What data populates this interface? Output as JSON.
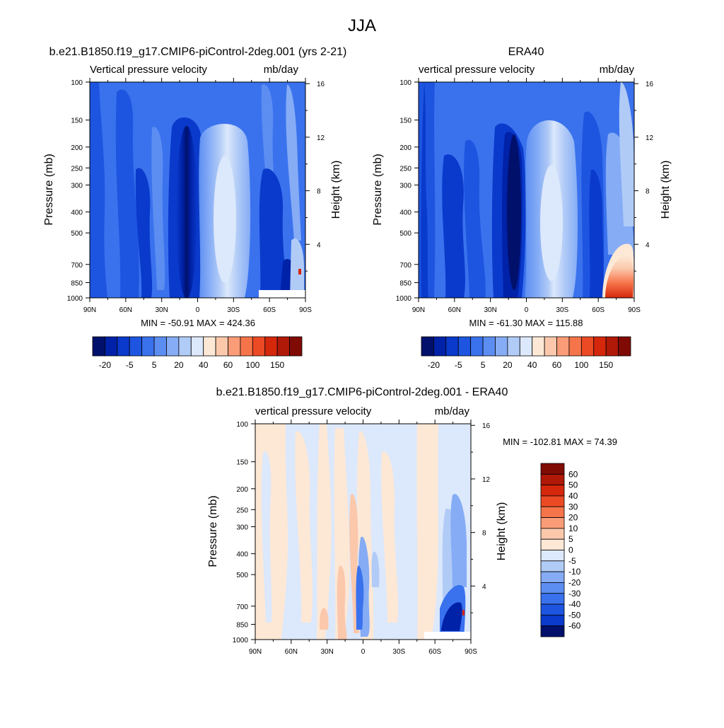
{
  "figure": {
    "title": "JJA"
  },
  "chart_data": [
    {
      "type": "heatmap",
      "title": "b.e21.B1850.f19_g17.CMIP6-piControl-2deg.001 (yrs 2-21)",
      "left_label": "Vertical pressure velocity",
      "right_label": "mb/day",
      "xlabel": "",
      "ylabel": "Pressure (mb)",
      "ylabel_right": "Height (km)",
      "x_ticks": [
        "90N",
        "60N",
        "30N",
        "0",
        "30S",
        "60S",
        "90S"
      ],
      "y_ticks": [
        "100",
        "150",
        "200",
        "250",
        "300",
        "400",
        "500",
        "700",
        "850",
        "1000"
      ],
      "height_ticks": [
        "16",
        "12",
        "8",
        "4"
      ],
      "x_range": [
        90,
        -90
      ],
      "y_range": [
        100,
        1000
      ],
      "stats": "MIN = -50.91  MAX = 424.36",
      "colorbar_labels": [
        "-20",
        "-5",
        "5",
        "20",
        "40",
        "60",
        "100",
        "150"
      ],
      "colors": [
        "#00106b",
        "#0022a8",
        "#0a3acc",
        "#1d55e0",
        "#3a72ee",
        "#5c8ef2",
        "#85acf5",
        "#b1cbf7",
        "#dce8fb",
        "#fde8d6",
        "#fbc8ac",
        "#fa9c77",
        "#f6744a",
        "#ec4a24",
        "#d5270c",
        "#b01808",
        "#800b05"
      ]
    },
    {
      "type": "heatmap",
      "title": "ERA40",
      "left_label": "vertical pressure velocity",
      "right_label": "mb/day",
      "xlabel": "",
      "ylabel": "Pressure (mb)",
      "ylabel_right": "Height (km)",
      "x_ticks": [
        "90N",
        "60N",
        "30N",
        "0",
        "30S",
        "60S",
        "90S"
      ],
      "y_ticks": [
        "100",
        "150",
        "200",
        "250",
        "300",
        "400",
        "500",
        "700",
        "850",
        "1000"
      ],
      "height_ticks": [
        "16",
        "12",
        "8",
        "4"
      ],
      "x_range": [
        90,
        -90
      ],
      "y_range": [
        100,
        1000
      ],
      "stats": "MIN = -61.30  MAX = 115.88",
      "colorbar_labels": [
        "-20",
        "-5",
        "5",
        "20",
        "40",
        "60",
        "100",
        "150"
      ],
      "colors": [
        "#00106b",
        "#0022a8",
        "#0a3acc",
        "#1d55e0",
        "#3a72ee",
        "#5c8ef2",
        "#85acf5",
        "#b1cbf7",
        "#dce8fb",
        "#fde8d6",
        "#fbc8ac",
        "#fa9c77",
        "#f6744a",
        "#ec4a24",
        "#d5270c",
        "#b01808",
        "#800b05"
      ]
    },
    {
      "type": "heatmap",
      "title": "b.e21.B1850.f19_g17.CMIP6-piControl-2deg.001 - ERA40",
      "left_label": "vertical pressure velocity",
      "right_label": "mb/day",
      "xlabel": "",
      "ylabel": "Pressure (mb)",
      "ylabel_right": "Height (km)",
      "x_ticks": [
        "90N",
        "60N",
        "30N",
        "0",
        "30S",
        "60S",
        "90S"
      ],
      "y_ticks": [
        "100",
        "150",
        "200",
        "250",
        "300",
        "400",
        "500",
        "700",
        "850",
        "1000"
      ],
      "height_ticks": [
        "16",
        "12",
        "8",
        "4"
      ],
      "x_range": [
        90,
        -90
      ],
      "y_range": [
        100,
        1000
      ],
      "stats": "MIN = -102.81  MAX =  74.39",
      "colorbar_labels": [
        "60",
        "50",
        "40",
        "30",
        "20",
        "10",
        "5",
        "0",
        "-5",
        "-10",
        "-20",
        "-30",
        "-40",
        "-50",
        "-60"
      ],
      "colors": [
        "#800b05",
        "#b01808",
        "#d5270c",
        "#ec4a24",
        "#f6744a",
        "#fa9c77",
        "#fbc8ac",
        "#fde8d6",
        "#dce8fb",
        "#b1cbf7",
        "#85acf5",
        "#5c8ef2",
        "#3a72ee",
        "#1d55e0",
        "#0a3acc",
        "#00106b"
      ]
    }
  ]
}
